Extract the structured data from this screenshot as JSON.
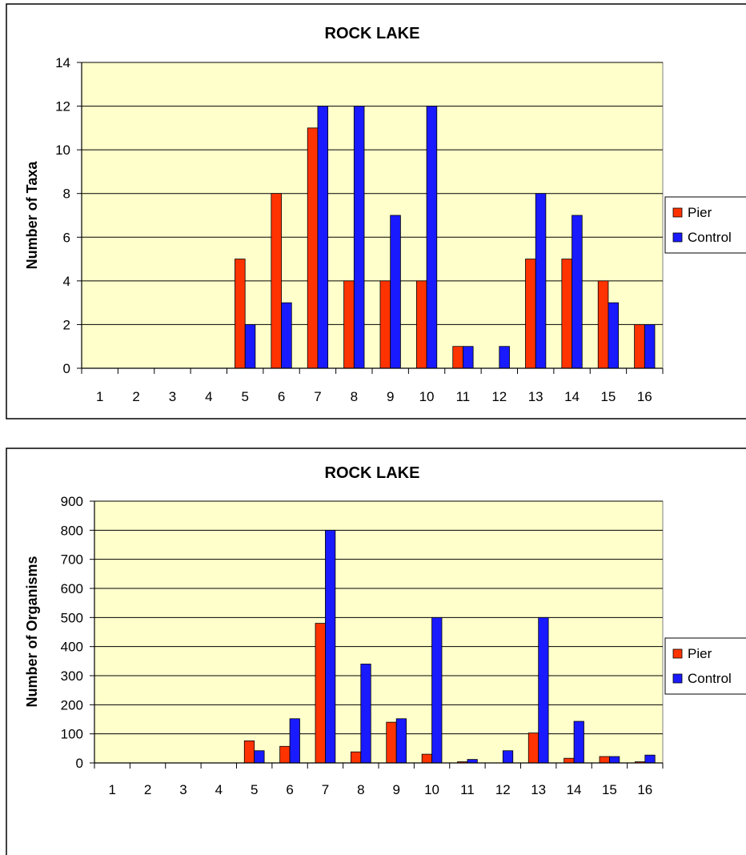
{
  "chart_data": [
    {
      "type": "bar",
      "title": "ROCK LAKE",
      "xlabel": "",
      "ylabel": "Number of Taxa",
      "ylim": [
        0,
        14
      ],
      "yticks": [
        0,
        2,
        4,
        6,
        8,
        10,
        12,
        14
      ],
      "categories": [
        "1",
        "2",
        "3",
        "4",
        "5",
        "6",
        "7",
        "8",
        "9",
        "10",
        "11",
        "12",
        "13",
        "14",
        "15",
        "16"
      ],
      "series": [
        {
          "name": "Pier",
          "color": "#ff3300",
          "values": [
            0,
            0,
            0,
            0,
            5,
            8,
            11,
            4,
            4,
            4,
            1,
            0,
            5,
            5,
            4,
            2
          ]
        },
        {
          "name": "Control",
          "color": "#1a1aff",
          "values": [
            0,
            0,
            0,
            0,
            2,
            3,
            12,
            12,
            7,
            12,
            1,
            1,
            8,
            7,
            3,
            2
          ]
        }
      ],
      "grid": true,
      "legend": "right",
      "plot_background": "#ffffcc"
    },
    {
      "type": "bar",
      "title": "ROCK LAKE",
      "xlabel": "",
      "ylabel": "Number of Organisms",
      "ylim": [
        0,
        900
      ],
      "yticks": [
        0,
        100,
        200,
        300,
        400,
        500,
        600,
        700,
        800,
        900
      ],
      "categories": [
        "1",
        "2",
        "3",
        "4",
        "5",
        "6",
        "7",
        "8",
        "9",
        "10",
        "11",
        "12",
        "13",
        "14",
        "15",
        "16"
      ],
      "series": [
        {
          "name": "Pier",
          "color": "#ff3300",
          "values": [
            0,
            0,
            0,
            0,
            76,
            57,
            480,
            38,
            140,
            30,
            4,
            0,
            103,
            16,
            22,
            4
          ]
        },
        {
          "name": "Control",
          "color": "#1a1aff",
          "values": [
            0,
            0,
            0,
            0,
            42,
            152,
            800,
            340,
            152,
            500,
            12,
            42,
            500,
            143,
            22,
            27
          ]
        }
      ],
      "grid": true,
      "legend": "right",
      "plot_background": "#ffffcc"
    }
  ]
}
